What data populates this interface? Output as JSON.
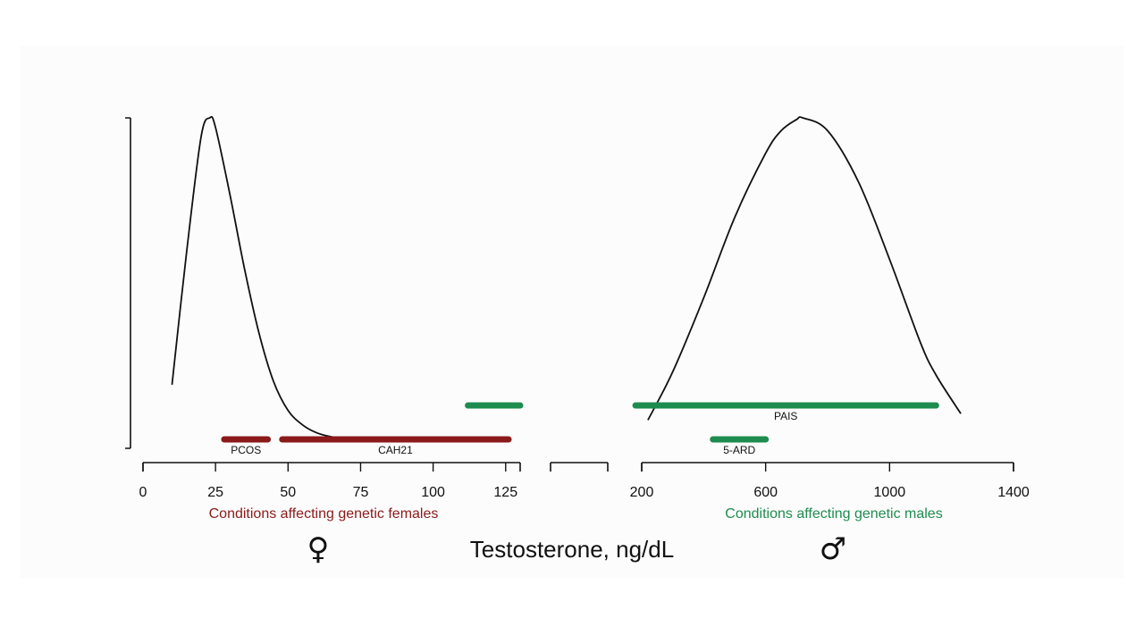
{
  "colors": {
    "female": "#8b1a1a",
    "male": "#1e8c4e",
    "curve": "#111111",
    "axis": "#111111"
  },
  "chart_data": {
    "type": "area",
    "xlabel": "Testosterone, ng/dL",
    "ylabel": "",
    "grid": false,
    "female_symbol": "♀",
    "male_symbol": "♂",
    "segments": [
      {
        "id": "female",
        "xlim": [
          0,
          130
        ],
        "ticks": [
          0,
          25,
          50,
          75,
          100,
          125
        ]
      },
      {
        "id": "gap",
        "xlim": [
          130,
          200
        ],
        "ticks": []
      },
      {
        "id": "male",
        "xlim": [
          200,
          1400
        ],
        "ticks": [
          200,
          600,
          1000,
          1400
        ]
      }
    ],
    "series": [
      {
        "segment": "female",
        "x": [
          10,
          15,
          20,
          23,
          25,
          30,
          35,
          40,
          45,
          50,
          55,
          60,
          65,
          70
        ],
        "y": [
          0.17,
          0.58,
          0.94,
          1.0,
          0.97,
          0.76,
          0.53,
          0.33,
          0.18,
          0.09,
          0.045,
          0.02,
          0.008,
          0.0
        ]
      },
      {
        "segment": "male",
        "x": [
          220,
          300,
          400,
          500,
          600,
          650,
          700,
          720,
          800,
          900,
          1000,
          1100,
          1150,
          1230
        ],
        "y": [
          0.06,
          0.21,
          0.44,
          0.69,
          0.89,
          0.96,
          0.995,
          1.0,
          0.96,
          0.8,
          0.56,
          0.3,
          0.2,
          0.08
        ]
      }
    ],
    "conditions": [
      {
        "name": "PCOS",
        "group": "female",
        "range": [
          28,
          43
        ],
        "row": "low"
      },
      {
        "name": "CAH21",
        "group": "female",
        "range": [
          48,
          126
        ],
        "row": "low"
      },
      {
        "name": "",
        "group": "male",
        "range": [
          112,
          130
        ],
        "row": "high",
        "segment": "female"
      },
      {
        "name": "PAIS",
        "group": "male",
        "range": [
          180,
          1150
        ],
        "row": "high",
        "segment": "male"
      },
      {
        "name": "5-ARD",
        "group": "male",
        "range": [
          430,
          600
        ],
        "row": "low",
        "segment": "male"
      }
    ],
    "group_labels": {
      "female": "Conditions affecting genetic females",
      "male": "Conditions affecting genetic males"
    }
  }
}
